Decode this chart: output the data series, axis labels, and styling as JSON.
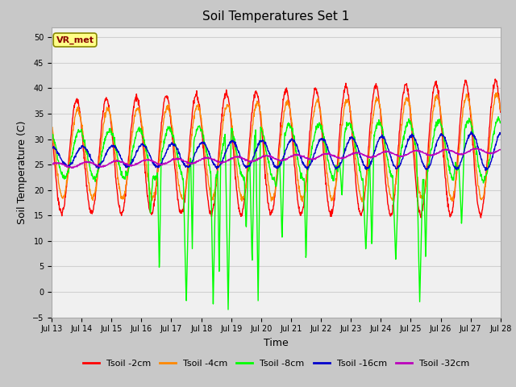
{
  "title": "Soil Temperatures Set 1",
  "xlabel": "Time",
  "ylabel": "Soil Temperature (C)",
  "ylim": [
    -5,
    52
  ],
  "yticks": [
    -5,
    0,
    5,
    10,
    15,
    20,
    25,
    30,
    35,
    40,
    45,
    50
  ],
  "x_tick_labels": [
    "Jul 13",
    "Jul 14",
    "Jul 15",
    "Jul 16",
    "Jul 17",
    "Jul 18",
    "Jul 19",
    "Jul 20",
    "Jul 21",
    "Jul 22",
    "Jul 23",
    "Jul 24",
    "Jul 25",
    "Jul 26",
    "Jul 27",
    "Jul 28"
  ],
  "annotation_text": "VR_met",
  "annotation_box_facecolor": "#FFFF88",
  "annotation_box_edgecolor": "#888800",
  "annotation_text_color": "#880000",
  "series_colors": [
    "#FF0000",
    "#FF8800",
    "#00FF00",
    "#0000CC",
    "#BB00BB"
  ],
  "series_labels": [
    "Tsoil -2cm",
    "Tsoil -4cm",
    "Tsoil -8cm",
    "Tsoil -16cm",
    "Tsoil -32cm"
  ],
  "fig_bg_color": "#C8C8C8",
  "plot_bg_color": "#F0F0F0",
  "grid_color": "#D0D0D0",
  "title_fontsize": 11,
  "axis_label_fontsize": 9,
  "tick_fontsize": 7,
  "legend_fontsize": 8,
  "line_width": 1.0
}
